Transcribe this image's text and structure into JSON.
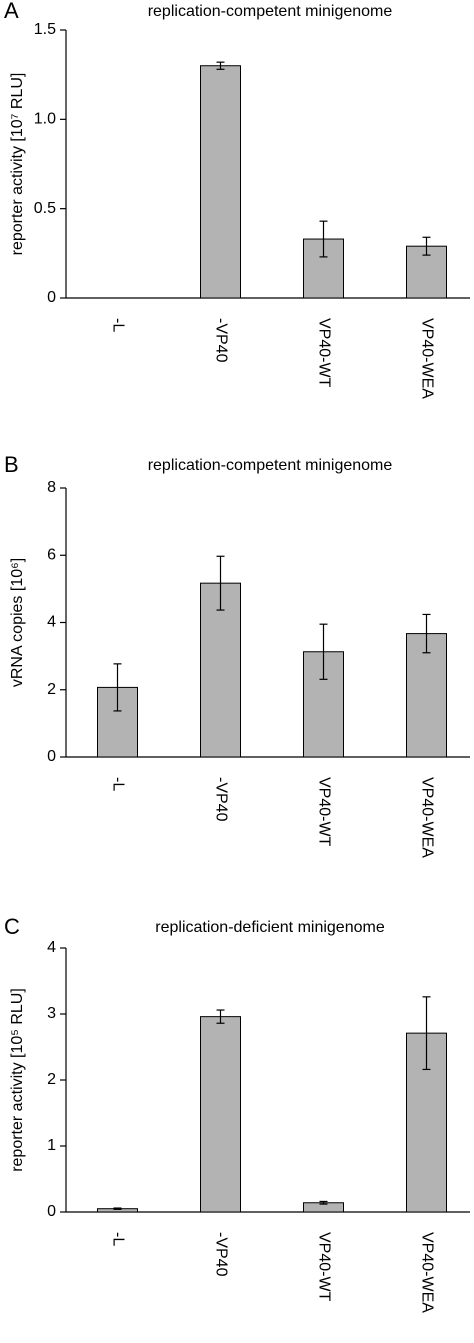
{
  "chart_data": [
    {
      "type": "bar",
      "panel_label": "A",
      "title": "replication-competent minigenome",
      "y_label": "reporter activity [10⁷ RLU]",
      "categories": [
        "-L",
        "-VP40",
        "VP40-WT",
        "VP40-WEA"
      ],
      "values": [
        0,
        1.3,
        0.33,
        0.29
      ],
      "errors": [
        null,
        0.02,
        0.1,
        0.05
      ],
      "color": "#b3b3b3",
      "ylim": [
        0,
        1.5
      ],
      "yticks": [
        0,
        0.5,
        {
          "value": 1,
          "label": "1.0"
        },
        1.5
      ]
    },
    {
      "type": "bar",
      "panel_label": "B",
      "title": "replication-competent minigenome",
      "y_label": "vRNA copies [10⁶]",
      "categories": [
        "-L",
        "-VP40",
        "VP40-WT",
        "VP40-WEA"
      ],
      "values": [
        2.07,
        5.17,
        3.13,
        3.67
      ],
      "errors": [
        0.7,
        0.8,
        0.82,
        0.57
      ],
      "color": "#b3b3b3",
      "ylim": [
        0,
        8
      ],
      "yticks": [
        0,
        2,
        4,
        6,
        8
      ]
    },
    {
      "type": "bar",
      "panel_label": "C",
      "title": "replication-deficient minigenome",
      "y_label": "reporter activity [10⁵ RLU]",
      "categories": [
        "-L",
        "-VP40",
        "VP40-WT",
        "VP40-WEA"
      ],
      "values": [
        0.05,
        2.96,
        0.14,
        2.71
      ],
      "errors": [
        0.01,
        0.1,
        0.02,
        0.55
      ],
      "color": "#b3b3b3",
      "ylim": [
        0,
        4
      ],
      "yticks": [
        0,
        1,
        2,
        3,
        4
      ]
    }
  ]
}
